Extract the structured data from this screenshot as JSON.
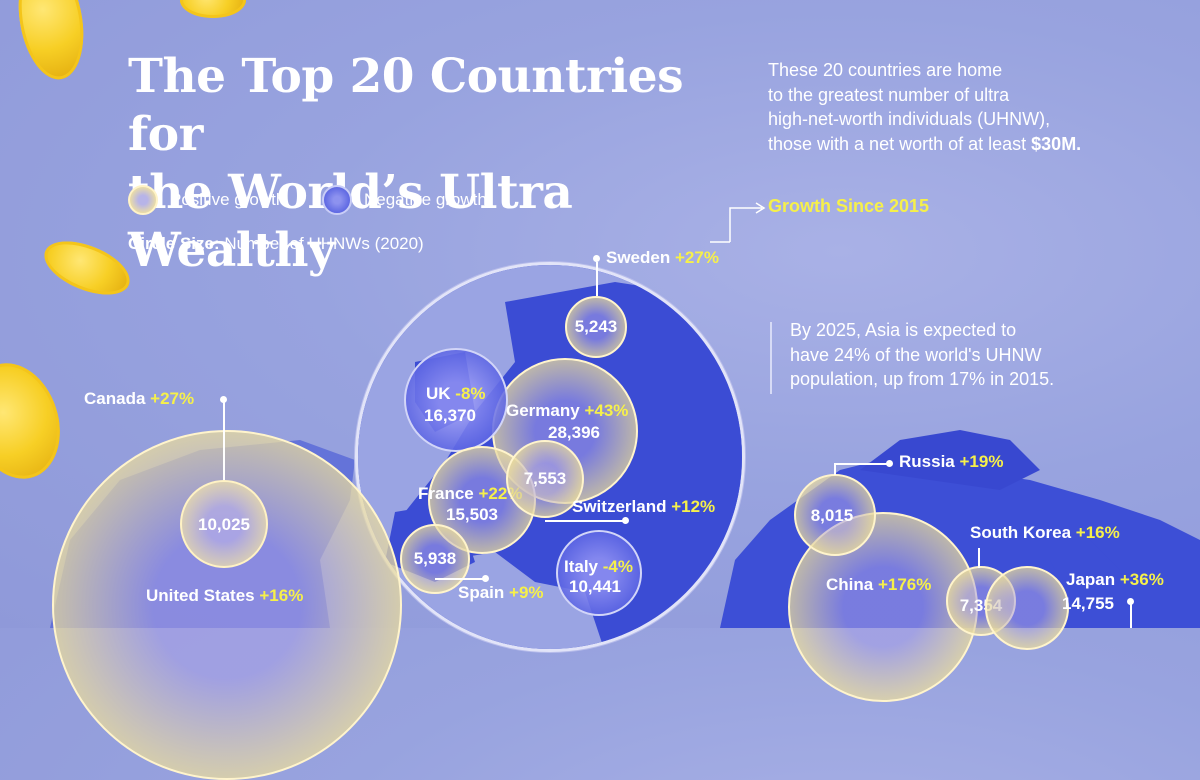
{
  "header": {
    "title_line1": "The Top 20 Countries for",
    "title_line2": "the World’s Ultra Wealthy",
    "subtitle_line1": "These 20 countries are home",
    "subtitle_line2": "to the greatest number of ultra",
    "subtitle_line3": "high-net-worth individuals (UHNW),",
    "subtitle_line4_prefix": "those with a net worth of at least ",
    "subtitle_line4_bold": "$30M."
  },
  "legend": {
    "positive": "Positive growth",
    "negative": "Negative growth",
    "size_label": "Circle Size:",
    "size_value": "Number of UHNWs (2020)",
    "growth_key": "Growth Since 2015"
  },
  "asia_note": {
    "line1": "By 2025, Asia is expected to",
    "line2": "have 24% of the world's UHNW",
    "line3": "population, up from 17% in 2015."
  },
  "countries": {
    "sweden": {
      "name": "Sweden",
      "growth": "+27%",
      "value": "5,243"
    },
    "uk": {
      "name": "UK",
      "growth": "-8%",
      "value": "16,370"
    },
    "germany": {
      "name": "Germany",
      "growth": "+43%",
      "value": "28,396"
    },
    "france": {
      "name": "France",
      "growth": "+22%",
      "value": "15,503"
    },
    "switzerland": {
      "name": "Switzerland",
      "growth": "+12%",
      "value": "7,553"
    },
    "spain": {
      "name": "Spain",
      "growth": "+9%",
      "value": "5,938"
    },
    "italy": {
      "name": "Italy",
      "growth": "-4%",
      "value": "10,441"
    },
    "canada": {
      "name": "Canada",
      "growth": "+27%",
      "value": "10,025"
    },
    "us": {
      "name": "United States",
      "growth": "+16%"
    },
    "russia": {
      "name": "Russia",
      "growth": "+19%",
      "value": "8,015"
    },
    "china": {
      "name": "China",
      "growth": "+176%"
    },
    "south_korea": {
      "name": "South Korea",
      "growth": "+16%",
      "value": "7,354"
    },
    "japan": {
      "name": "Japan",
      "growth": "+36%",
      "value": "14,755"
    }
  },
  "colors": {
    "background": "#98a3df",
    "growth_text": "#f6f04a",
    "map_land": "#3d4fd6"
  }
}
